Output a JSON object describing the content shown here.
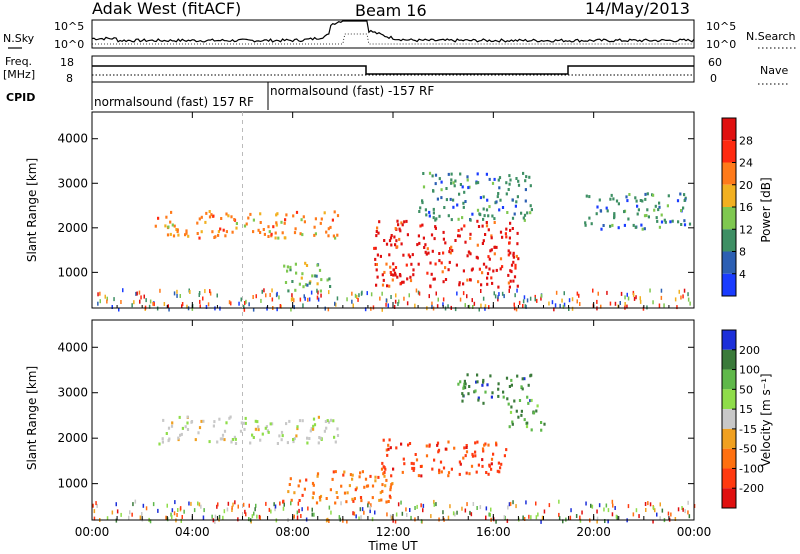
{
  "header": {
    "station": "Adak West (fitACF)",
    "beam": "Beam 16",
    "date": "14/May/2013"
  },
  "sky_panel": {
    "left_label": "N.Sky",
    "left_ticks": [
      "10^5",
      "10^0"
    ],
    "right_ticks": [
      "10^5",
      "10^0"
    ],
    "right_label": "N.Search"
  },
  "freq_panel": {
    "left_label_1": "Freq.",
    "left_label_2": "[MHz]",
    "left_ticks": [
      "18",
      "8"
    ],
    "right_ticks": [
      "60",
      "0"
    ],
    "right_label": "Nave"
  },
  "cpid": {
    "label": "CPID",
    "entries": [
      "normalsound (fast) 157 RF",
      "normalsound (fast) -157 RF"
    ]
  },
  "chart_data": [
    {
      "type": "heatmap",
      "title": "",
      "ylabel": "Slant Range [km]",
      "ylim": [
        200,
        4600
      ],
      "yticks": [
        "1000",
        "2000",
        "3000",
        "4000"
      ],
      "colorbar": {
        "label": "Power [dB]",
        "levels": [
          "4",
          "8",
          "12",
          "16",
          "20",
          "24",
          "28"
        ],
        "colors": [
          "#1a3cff",
          "#2c5fb3",
          "#3e8f64",
          "#7fc850",
          "#f2b020",
          "#ff7a1a",
          "#ff2a10",
          "#e01010"
        ]
      },
      "echo_regions": [
        {
          "region": "morning-band",
          "time_hours": [
            2.5,
            9.8
          ],
          "range_km": [
            1800,
            2400
          ],
          "peak_db": 20
        },
        {
          "region": "lower-patch",
          "time_hours": [
            7.5,
            9.5
          ],
          "range_km": [
            600,
            1250
          ],
          "peak_db": 12
        },
        {
          "region": "midday-strong",
          "time_hours": [
            11.2,
            17.0
          ],
          "range_km": [
            700,
            2200
          ],
          "peak_db": 30
        },
        {
          "region": "upper-scatter",
          "time_hours": [
            13.0,
            17.5
          ],
          "range_km": [
            2200,
            3300
          ],
          "peak_db": 8
        },
        {
          "region": "evening-band",
          "time_hours": [
            19.5,
            23.8
          ],
          "range_km": [
            2000,
            2800
          ],
          "peak_db": 8
        }
      ]
    },
    {
      "type": "heatmap",
      "title": "",
      "ylabel": "Slant Range [km]",
      "xlabel": "Time UT",
      "ylim": [
        200,
        4600
      ],
      "yticks": [
        "1000",
        "2000",
        "3000",
        "4000"
      ],
      "xticks": [
        "00:00",
        "04:00",
        "08:00",
        "12:00",
        "16:00",
        "20:00",
        "00:00"
      ],
      "colorbar": {
        "label": "Velocity [m s⁻¹]",
        "levels": [
          "200",
          "100",
          "50",
          "15",
          "-15",
          "-50",
          "-100",
          "-200"
        ],
        "colors": [
          "#1c2fd9",
          "#3a7a3a",
          "#5fb84a",
          "#8fdd4a",
          "#c8c8c8",
          "#f0a020",
          "#ff7010",
          "#ff3a10",
          "#e01010"
        ]
      },
      "echo_regions": [
        {
          "region": "morning-band",
          "time_hours": [
            2.5,
            9.8
          ],
          "range_km": [
            1900,
            2500
          ],
          "velocity": 0
        },
        {
          "region": "lower-patch",
          "time_hours": [
            7.5,
            12.0
          ],
          "range_km": [
            600,
            1300
          ],
          "velocity": -50
        },
        {
          "region": "midday-red",
          "time_hours": [
            11.5,
            16.5
          ],
          "range_km": [
            1200,
            2000
          ],
          "velocity": -150
        },
        {
          "region": "upper-blue",
          "time_hours": [
            14.5,
            17.5
          ],
          "range_km": [
            2800,
            3500
          ],
          "velocity": 150
        },
        {
          "region": "evening-green",
          "time_hours": [
            16.5,
            18.0
          ],
          "range_km": [
            2200,
            2900
          ],
          "velocity": 40
        }
      ]
    }
  ]
}
